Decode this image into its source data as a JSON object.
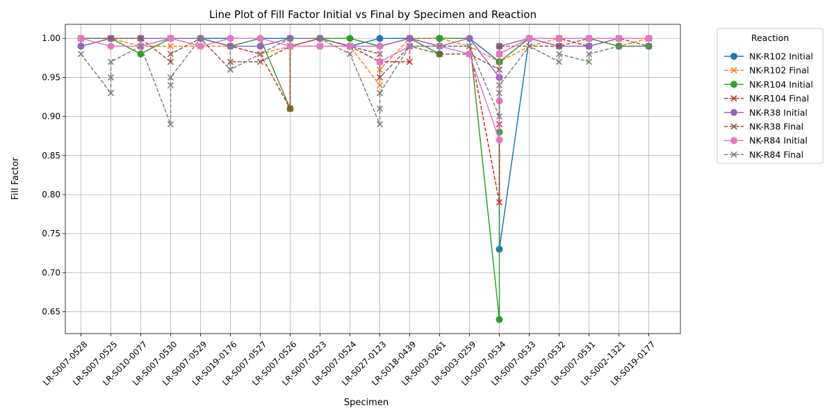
{
  "chart_data": {
    "type": "line",
    "title": "Line Plot of Fill Factor Initial vs Final by Specimen and Reaction",
    "xlabel": "Specimen",
    "ylabel": "Fill Factor",
    "ylim": [
      0.622,
      1.018
    ],
    "yticks": [
      "0.65",
      "0.70",
      "0.75",
      "0.80",
      "0.85",
      "0.90",
      "0.95",
      "1.00"
    ],
    "grid": true,
    "legend_title": "Reaction",
    "legend_position": "outside-right",
    "categories": [
      "LR-S007-0528",
      "LR-S007-0525",
      "LR-S010-0077",
      "LR-S007-0530",
      "LR-S007-0529",
      "LR-S019-0176",
      "LR-S007-0527",
      "LR-S007-0526",
      "LR-S007-0523",
      "LR-S007-0524",
      "LR-S027-0123",
      "LR-S018-0439",
      "LR-S003-0261",
      "LR-S003-0259",
      "LR-S007-0534",
      "LR-S007-0533",
      "LR-S007-0532",
      "LR-S007-0531",
      "LR-S002-1321",
      "LR-S019-0177"
    ],
    "series": [
      {
        "name": "NK-R102 Initial",
        "color": "#1f77b4",
        "dashed": false,
        "marker": "circle",
        "points": [
          [
            0,
            1.0
          ],
          [
            0,
            0.99
          ],
          [
            1,
            1.0
          ],
          [
            2,
            1.0
          ],
          [
            2,
            0.99
          ],
          [
            3,
            1.0
          ],
          [
            4,
            1.0
          ],
          [
            5,
            1.0
          ],
          [
            6,
            1.0
          ],
          [
            7,
            1.0
          ],
          [
            8,
            1.0
          ],
          [
            9,
            0.99
          ],
          [
            10,
            1.0
          ],
          [
            11,
            1.0
          ],
          [
            12,
            1.0
          ],
          [
            13,
            1.0
          ],
          [
            14,
            0.97
          ],
          [
            14,
            0.73
          ],
          [
            15,
            1.0
          ],
          [
            16,
            1.0
          ],
          [
            17,
            1.0
          ],
          [
            18,
            1.0
          ],
          [
            19,
            1.0
          ]
        ]
      },
      {
        "name": "NK-R102 Final",
        "color": "#ff7f0e",
        "dashed": true,
        "marker": "x",
        "points": [
          [
            0,
            1.0
          ],
          [
            1,
            1.0
          ],
          [
            2,
            0.99
          ],
          [
            3,
            0.99
          ],
          [
            4,
            0.99
          ],
          [
            5,
            0.99
          ],
          [
            6,
            0.98
          ],
          [
            7,
            0.99
          ],
          [
            8,
            0.99
          ],
          [
            9,
            0.99
          ],
          [
            10,
            0.94
          ],
          [
            10,
            0.96
          ],
          [
            11,
            1.0
          ],
          [
            12,
            1.0
          ],
          [
            13,
            0.99
          ],
          [
            14,
            0.97
          ],
          [
            15,
            0.99
          ],
          [
            16,
            1.0
          ],
          [
            17,
            1.0
          ],
          [
            18,
            0.99
          ],
          [
            19,
            1.0
          ]
        ]
      },
      {
        "name": "NK-R104 Initial",
        "color": "#2ca02c",
        "dashed": false,
        "marker": "circle",
        "points": [
          [
            0,
            1.0
          ],
          [
            1,
            1.0
          ],
          [
            2,
            0.98
          ],
          [
            3,
            1.0
          ],
          [
            4,
            1.0
          ],
          [
            5,
            0.99
          ],
          [
            6,
            1.0
          ],
          [
            7,
            0.91
          ],
          [
            7,
            1.0
          ],
          [
            8,
            1.0
          ],
          [
            9,
            1.0
          ],
          [
            10,
            0.99
          ],
          [
            11,
            1.0
          ],
          [
            12,
            0.98
          ],
          [
            12,
            1.0
          ],
          [
            13,
            1.0
          ],
          [
            14,
            0.64
          ],
          [
            14,
            0.88
          ],
          [
            14,
            0.97
          ],
          [
            15,
            1.0
          ],
          [
            16,
            1.0
          ],
          [
            17,
            1.0
          ],
          [
            18,
            0.99
          ],
          [
            19,
            0.99
          ]
        ]
      },
      {
        "name": "NK-R104 Final",
        "color": "#d62728",
        "dashed": true,
        "marker": "x",
        "points": [
          [
            0,
            1.0
          ],
          [
            1,
            1.0
          ],
          [
            2,
            1.0
          ],
          [
            3,
            1.0
          ],
          [
            4,
            1.0
          ],
          [
            5,
            0.99
          ],
          [
            6,
            0.98
          ],
          [
            7,
            0.91
          ],
          [
            7,
            0.99
          ],
          [
            8,
            1.0
          ],
          [
            9,
            0.99
          ],
          [
            10,
            0.97
          ],
          [
            11,
            0.97
          ],
          [
            11,
            1.0
          ],
          [
            12,
            0.99
          ],
          [
            13,
            0.99
          ],
          [
            14,
            0.79
          ],
          [
            14,
            0.89
          ],
          [
            14,
            0.98
          ],
          [
            15,
            1.0
          ],
          [
            16,
            1.0
          ],
          [
            17,
            0.99
          ],
          [
            18,
            1.0
          ],
          [
            19,
            1.0
          ]
        ]
      },
      {
        "name": "NK-R38 Initial",
        "color": "#9467bd",
        "dashed": false,
        "marker": "circle",
        "points": [
          [
            0,
            0.99
          ],
          [
            1,
            1.0
          ],
          [
            2,
            1.0
          ],
          [
            3,
            1.0
          ],
          [
            4,
            1.0
          ],
          [
            5,
            0.99
          ],
          [
            6,
            0.99
          ],
          [
            7,
            1.0
          ],
          [
            8,
            1.0
          ],
          [
            9,
            0.99
          ],
          [
            10,
            0.99
          ],
          [
            11,
            1.0
          ],
          [
            12,
            0.99
          ],
          [
            13,
            1.0
          ],
          [
            14,
            0.95
          ],
          [
            14,
            0.99
          ],
          [
            15,
            1.0
          ],
          [
            16,
            0.99
          ],
          [
            17,
            0.99
          ],
          [
            18,
            1.0
          ],
          [
            19,
            1.0
          ]
        ]
      },
      {
        "name": "NK-R38 Final",
        "color": "#8c564b",
        "dashed": true,
        "marker": "x",
        "points": [
          [
            0,
            1.0
          ],
          [
            1,
            1.0
          ],
          [
            2,
            1.0
          ],
          [
            3,
            0.97
          ],
          [
            3,
            0.98
          ],
          [
            4,
            1.0
          ],
          [
            5,
            0.96
          ],
          [
            5,
            0.97
          ],
          [
            6,
            0.97
          ],
          [
            7,
            0.99
          ],
          [
            8,
            1.0
          ],
          [
            9,
            0.99
          ],
          [
            10,
            0.98
          ],
          [
            10,
            0.95
          ],
          [
            11,
            0.99
          ],
          [
            12,
            0.98
          ],
          [
            13,
            0.98
          ],
          [
            14,
            0.96
          ],
          [
            14,
            0.99
          ],
          [
            15,
            0.99
          ],
          [
            16,
            0.99
          ],
          [
            17,
            1.0
          ],
          [
            18,
            1.0
          ],
          [
            19,
            0.99
          ]
        ]
      },
      {
        "name": "NK-R84 Initial",
        "color": "#e377c2",
        "dashed": false,
        "marker": "circle",
        "points": [
          [
            0,
            1.0
          ],
          [
            1,
            0.99
          ],
          [
            2,
            0.99
          ],
          [
            3,
            1.0
          ],
          [
            4,
            0.99
          ],
          [
            5,
            1.0
          ],
          [
            6,
            1.0
          ],
          [
            7,
            0.99
          ],
          [
            8,
            0.99
          ],
          [
            9,
            0.99
          ],
          [
            10,
            0.99
          ],
          [
            10,
            0.97
          ],
          [
            11,
            0.99
          ],
          [
            12,
            0.99
          ],
          [
            13,
            0.98
          ],
          [
            14,
            0.87
          ],
          [
            14,
            0.92
          ],
          [
            14,
            0.98
          ],
          [
            15,
            1.0
          ],
          [
            16,
            1.0
          ],
          [
            17,
            1.0
          ],
          [
            18,
            1.0
          ],
          [
            19,
            1.0
          ]
        ]
      },
      {
        "name": "NK-R84 Final",
        "color": "#7f7f7f",
        "dashed": true,
        "marker": "x",
        "points": [
          [
            0,
            0.98
          ],
          [
            1,
            0.93
          ],
          [
            1,
            0.95
          ],
          [
            1,
            0.97
          ],
          [
            2,
            0.99
          ],
          [
            3,
            0.89
          ],
          [
            3,
            0.94
          ],
          [
            3,
            0.95
          ],
          [
            4,
            1.0
          ],
          [
            5,
            0.99
          ],
          [
            5,
            0.96
          ],
          [
            6,
            0.98
          ],
          [
            7,
            1.0
          ],
          [
            8,
            1.0
          ],
          [
            9,
            0.98
          ],
          [
            10,
            0.89
          ],
          [
            10,
            0.91
          ],
          [
            10,
            0.93
          ],
          [
            11,
            0.99
          ],
          [
            12,
            0.99
          ],
          [
            13,
            0.99
          ],
          [
            14,
            0.9
          ],
          [
            14,
            0.93
          ],
          [
            14,
            0.94
          ],
          [
            15,
            0.99
          ],
          [
            16,
            0.97
          ],
          [
            16,
            0.98
          ],
          [
            17,
            0.97
          ],
          [
            17,
            0.98
          ],
          [
            18,
            0.99
          ],
          [
            19,
            0.99
          ]
        ]
      }
    ]
  }
}
